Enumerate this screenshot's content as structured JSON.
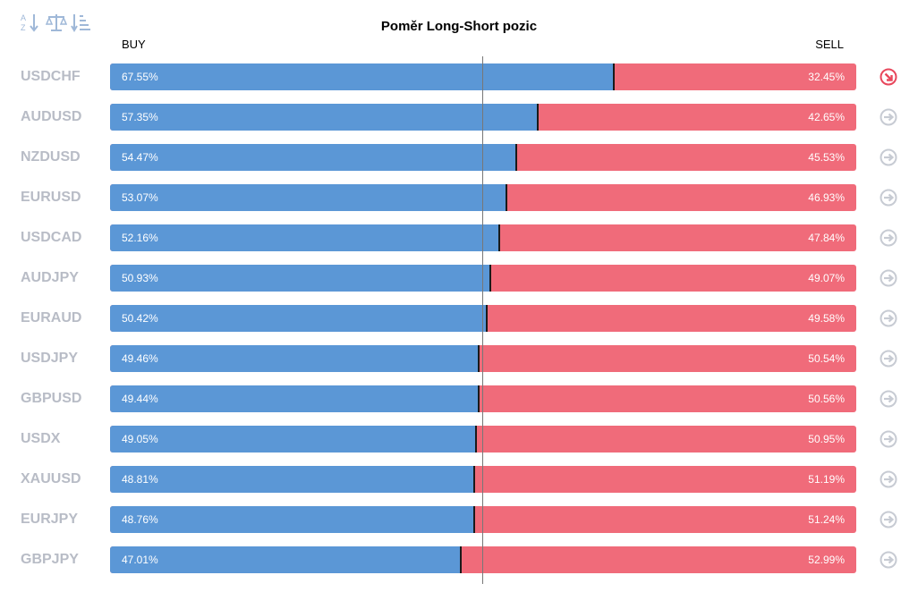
{
  "title": "Poměr Long-Short pozic",
  "buy_label": "BUY",
  "sell_label": "SELL",
  "toolbar": {
    "icons": [
      "sort-alpha-icon",
      "balance-scale-icon",
      "sort-amount-icon"
    ]
  },
  "colors": {
    "buy": "#5b97d6",
    "sell": "#f06b7a",
    "symbol_text": "#b8bcc6",
    "arrow_neutral": "#c7cbd3",
    "arrow_alert": "#e8475c"
  },
  "chart_data": {
    "type": "bar",
    "orientation": "horizontal-stacked-100",
    "title": "Poměr Long-Short pozic",
    "series": [
      {
        "name": "BUY",
        "values": [
          67.55,
          57.35,
          54.47,
          53.07,
          52.16,
          50.93,
          50.42,
          49.46,
          49.44,
          49.05,
          48.81,
          48.76,
          47.01
        ]
      },
      {
        "name": "SELL",
        "values": [
          32.45,
          42.65,
          45.53,
          46.93,
          47.84,
          49.07,
          49.58,
          50.54,
          50.56,
          50.95,
          51.19,
          51.24,
          52.99
        ]
      }
    ],
    "categories": [
      "USDCHF",
      "AUDUSD",
      "NZDUSD",
      "EURUSD",
      "USDCAD",
      "AUDJPY",
      "EURAUD",
      "USDJPY",
      "GBPUSD",
      "USDX",
      "XAUUSD",
      "EURJPY",
      "GBPJPY"
    ],
    "xlim": [
      0,
      100
    ],
    "reference_line": 50
  },
  "rows": [
    {
      "symbol": "USDCHF",
      "buy": "67.55%",
      "sell": "32.45%",
      "arrow": "alert"
    },
    {
      "symbol": "AUDUSD",
      "buy": "57.35%",
      "sell": "42.65%",
      "arrow": "neutral"
    },
    {
      "symbol": "NZDUSD",
      "buy": "54.47%",
      "sell": "45.53%",
      "arrow": "neutral"
    },
    {
      "symbol": "EURUSD",
      "buy": "53.07%",
      "sell": "46.93%",
      "arrow": "neutral"
    },
    {
      "symbol": "USDCAD",
      "buy": "52.16%",
      "sell": "47.84%",
      "arrow": "neutral"
    },
    {
      "symbol": "AUDJPY",
      "buy": "50.93%",
      "sell": "49.07%",
      "arrow": "neutral"
    },
    {
      "symbol": "EURAUD",
      "buy": "50.42%",
      "sell": "49.58%",
      "arrow": "neutral"
    },
    {
      "symbol": "USDJPY",
      "buy": "49.46%",
      "sell": "50.54%",
      "arrow": "neutral"
    },
    {
      "symbol": "GBPUSD",
      "buy": "49.44%",
      "sell": "50.56%",
      "arrow": "neutral"
    },
    {
      "symbol": "USDX",
      "buy": "49.05%",
      "sell": "50.95%",
      "arrow": "neutral"
    },
    {
      "symbol": "XAUUSD",
      "buy": "48.81%",
      "sell": "51.19%",
      "arrow": "neutral"
    },
    {
      "symbol": "EURJPY",
      "buy": "48.76%",
      "sell": "51.24%",
      "arrow": "neutral"
    },
    {
      "symbol": "GBPJPY",
      "buy": "47.01%",
      "sell": "52.99%",
      "arrow": "neutral"
    }
  ]
}
